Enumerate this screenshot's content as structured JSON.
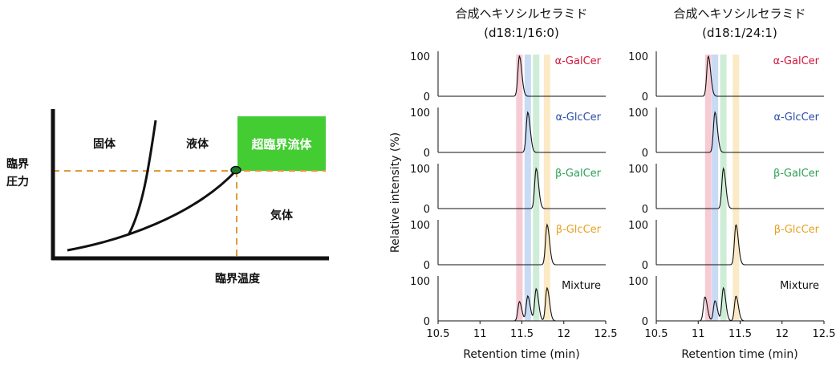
{
  "phase_diagram": {
    "regions": {
      "solid": "固体",
      "liquid": "液体",
      "supercritical": "超臨界流体",
      "gas": "気体"
    },
    "critical_pressure_label": [
      "臨界",
      "圧力"
    ],
    "critical_temperature_label": "臨界温度",
    "colors": {
      "supercritical_box": "#44cc33",
      "dashed_lines": "#e09a3a",
      "curves": "#111111"
    }
  },
  "chart_data": [
    {
      "type": "line",
      "title": [
        "合成ヘキソシルセラミド",
        "(d18:1/16:0)"
      ],
      "xlabel": "Retention time (min)",
      "ylabel": "Relative intensity (%)",
      "xlim": [
        10.5,
        12.5
      ],
      "xticks": [
        "10.5",
        "11",
        "11.5",
        "12",
        "12.5"
      ],
      "ylim": [
        0,
        100
      ],
      "yticks": [
        "0",
        "100"
      ],
      "highlight_bands": [
        {
          "x": 11.47,
          "color": "#f5c2cc"
        },
        {
          "x": 11.57,
          "color": "#bfd3f2"
        },
        {
          "x": 11.67,
          "color": "#c5ead0"
        },
        {
          "x": 11.8,
          "color": "#fbe6bd"
        }
      ],
      "series": [
        {
          "name": "α-GalCer",
          "color": "#d0153a",
          "peaks": [
            {
              "x": 11.47,
              "height": 100
            }
          ]
        },
        {
          "name": "α-GlcCer",
          "color": "#2a4ea8",
          "peaks": [
            {
              "x": 11.57,
              "height": 100
            }
          ]
        },
        {
          "name": "β-GalCer",
          "color": "#2aa052",
          "peaks": [
            {
              "x": 11.67,
              "height": 100
            }
          ]
        },
        {
          "name": "β-GlcCer",
          "color": "#e8a020",
          "peaks": [
            {
              "x": 11.8,
              "height": 100
            }
          ]
        },
        {
          "name": "Mixture",
          "color": "#111111",
          "peaks": [
            {
              "x": 11.47,
              "height": 48
            },
            {
              "x": 11.57,
              "height": 62
            },
            {
              "x": 11.67,
              "height": 80
            },
            {
              "x": 11.8,
              "height": 82
            }
          ]
        }
      ]
    },
    {
      "type": "line",
      "title": [
        "合成ヘキソシルセラミド",
        "(d18:1/24:1)"
      ],
      "xlabel": "Retention time (min)",
      "ylabel": "",
      "xlim": [
        10.5,
        12.5
      ],
      "xticks": [
        "10.5",
        "11",
        "11.5",
        "12",
        "12.5"
      ],
      "ylim": [
        0,
        100
      ],
      "yticks": [
        "0",
        "100"
      ],
      "highlight_bands": [
        {
          "x": 11.12,
          "color": "#f5c2cc"
        },
        {
          "x": 11.2,
          "color": "#bfd3f2"
        },
        {
          "x": 11.3,
          "color": "#c5ead0"
        },
        {
          "x": 11.45,
          "color": "#fbe6bd"
        }
      ],
      "series": [
        {
          "name": "α-GalCer",
          "color": "#d0153a",
          "peaks": [
            {
              "x": 11.12,
              "height": 100
            }
          ]
        },
        {
          "name": "α-GlcCer",
          "color": "#2a4ea8",
          "peaks": [
            {
              "x": 11.2,
              "height": 100
            }
          ]
        },
        {
          "name": "β-GalCer",
          "color": "#2aa052",
          "peaks": [
            {
              "x": 11.3,
              "height": 100
            }
          ]
        },
        {
          "name": "β-GlcCer",
          "color": "#e8a020",
          "peaks": [
            {
              "x": 11.45,
              "height": 100
            }
          ]
        },
        {
          "name": "Mixture",
          "color": "#111111",
          "peaks": [
            {
              "x": 11.08,
              "height": 60
            },
            {
              "x": 11.2,
              "height": 50
            },
            {
              "x": 11.3,
              "height": 82
            },
            {
              "x": 11.45,
              "height": 62
            }
          ]
        }
      ]
    }
  ]
}
